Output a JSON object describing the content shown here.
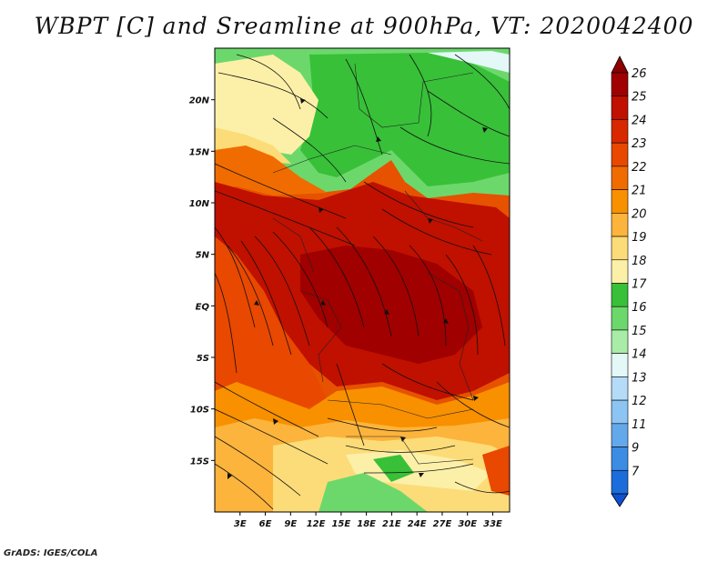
{
  "title": "WBPT [C] and Sreamline at 900hPa, VT: 2020042400",
  "credit": "GrADS: IGES/COLA",
  "map": {
    "lon_range": [
      0,
      35
    ],
    "lat_range": [
      -20,
      25
    ],
    "lon_ticks": [
      {
        "value": 3,
        "label": "3E"
      },
      {
        "value": 6,
        "label": "6E"
      },
      {
        "value": 9,
        "label": "9E"
      },
      {
        "value": 12,
        "label": "12E"
      },
      {
        "value": 15,
        "label": "15E"
      },
      {
        "value": 18,
        "label": "18E"
      },
      {
        "value": 21,
        "label": "21E"
      },
      {
        "value": 24,
        "label": "24E"
      },
      {
        "value": 27,
        "label": "27E"
      },
      {
        "value": 30,
        "label": "30E"
      },
      {
        "value": 33,
        "label": "33E"
      }
    ],
    "lat_ticks": [
      {
        "value": 20,
        "label": "20N"
      },
      {
        "value": 15,
        "label": "15N"
      },
      {
        "value": 10,
        "label": "10N"
      },
      {
        "value": 5,
        "label": "5N"
      },
      {
        "value": 0,
        "label": "EQ"
      },
      {
        "value": -5,
        "label": "5S"
      },
      {
        "value": -10,
        "label": "10S"
      },
      {
        "value": -15,
        "label": "15S"
      }
    ]
  },
  "colorbar": {
    "levels": [
      {
        "label": "26",
        "color": "#a00000"
      },
      {
        "label": "25",
        "color": "#c01000"
      },
      {
        "label": "24",
        "color": "#d82800"
      },
      {
        "label": "23",
        "color": "#e84800"
      },
      {
        "label": "22",
        "color": "#f06c00"
      },
      {
        "label": "21",
        "color": "#f89000"
      },
      {
        "label": "20",
        "color": "#fcb43c"
      },
      {
        "label": "19",
        "color": "#fcdc78"
      },
      {
        "label": "18",
        "color": "#fcf0a8"
      },
      {
        "label": "17",
        "color": "#38c038"
      },
      {
        "label": "16",
        "color": "#6cd86c"
      },
      {
        "label": "15",
        "color": "#a8eca8"
      },
      {
        "label": "14",
        "color": "#e4f8f8"
      },
      {
        "label": "13",
        "color": "#b4dcf8"
      },
      {
        "label": "12",
        "color": "#8cc4f4"
      },
      {
        "label": "11",
        "color": "#64a8ec"
      },
      {
        "label": "9",
        "color": "#3c8ce4"
      },
      {
        "label": "7",
        "color": "#1c6cdc"
      }
    ],
    "top_color": "#8c0000",
    "bottom_color": "#1050d0"
  }
}
